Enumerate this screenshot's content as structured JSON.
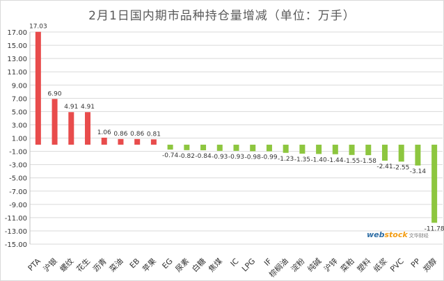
{
  "chart_data": {
    "type": "bar",
    "title": "2月1日国内期市品种持仓量增减（单位：万手）",
    "categories": [
      "PTA",
      "沪银",
      "螺纹",
      "花生",
      "沥青",
      "菜油",
      "EB",
      "苹果",
      "EG",
      "尿素",
      "白糖",
      "焦煤",
      "IC",
      "LPG",
      "IF",
      "棕榈油",
      "淀粉",
      "纯碱",
      "沪锌",
      "菜粕",
      "塑料",
      "纸浆",
      "PVC",
      "PP",
      "郑醇"
    ],
    "values": [
      17.03,
      6.9,
      4.91,
      4.91,
      1.06,
      0.86,
      0.86,
      0.81,
      -0.74,
      -0.82,
      -0.84,
      -0.93,
      -0.93,
      -0.98,
      -0.99,
      -1.23,
      -1.35,
      -1.4,
      -1.44,
      -1.55,
      -1.58,
      -2.41,
      -2.55,
      -3.14,
      -11.78
    ],
    "value_labels": [
      "17.03",
      "6.90",
      "4.91",
      "4.91",
      "1.06",
      "0.86",
      "0.86",
      "0.81",
      "-0.74",
      "-0.82",
      "-0.84",
      "-0.93",
      "-0.93",
      "-0.98",
      "-0.99",
      "-1.23",
      "-1.35",
      "-1.40",
      "-1.44",
      "-1.55",
      "-1.58",
      "-2.41",
      "-2.55",
      "-3.14",
      "-11.78"
    ],
    "yticks": [
      "17.00",
      "15.00",
      "13.00",
      "11.00",
      "9.00",
      "7.00",
      "5.00",
      "3.00",
      "1.00",
      "-1.00",
      "-3.00",
      "-5.00",
      "-7.00",
      "-9.00",
      "-11.00",
      "-13.00",
      "-15.00"
    ],
    "ylim": [
      -15,
      17
    ],
    "xlabel": "",
    "ylabel": "",
    "grid": true,
    "positive_color": "#e84c4c",
    "negative_color": "#8dc63f",
    "axis_color": "#bfbfbf",
    "grid_color": "#d9d9d9",
    "text_color": "#333333"
  },
  "watermark": {
    "logo_prefix": "web",
    "logo_highlight": "stock",
    "subtitle": "文华财经"
  }
}
